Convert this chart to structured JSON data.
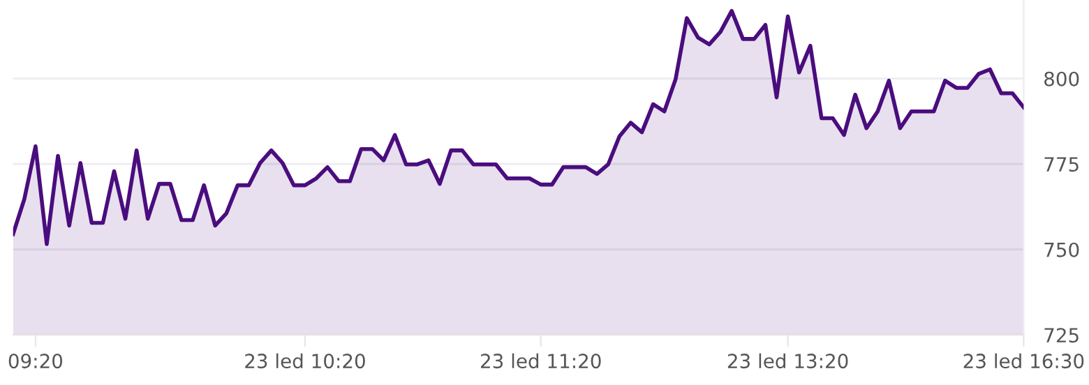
{
  "chart_data": {
    "type": "area",
    "categories": [
      null,
      null,
      "09:20",
      null,
      null,
      null,
      null,
      null,
      null,
      null,
      null,
      null,
      null,
      null,
      null,
      null,
      null,
      null,
      null,
      null,
      null,
      null,
      null,
      null,
      null,
      null,
      "23 led 10:20",
      null,
      null,
      null,
      null,
      null,
      null,
      null,
      null,
      null,
      null,
      null,
      null,
      null,
      null,
      null,
      null,
      null,
      null,
      null,
      null,
      "23 led 11:20",
      null,
      null,
      null,
      null,
      null,
      null,
      null,
      null,
      null,
      null,
      null,
      null,
      null,
      null,
      null,
      null,
      null,
      null,
      null,
      null,
      null,
      "23 led 13:20",
      null,
      null,
      null,
      null,
      null,
      null,
      null,
      null,
      null,
      null,
      null,
      null,
      null,
      null,
      null,
      null,
      null,
      null,
      null,
      null,
      "23 led 16:30"
    ],
    "series": [
      {
        "color": "#4a0d7e",
        "values": [
          754.5,
          764.7,
          780.2,
          751.6,
          777.4,
          757,
          775.3,
          757.8,
          757.8,
          772.9,
          759,
          779,
          759,
          769.2,
          769.2,
          758.6,
          758.6,
          768.8,
          757,
          760.6,
          768.8,
          768.8,
          775.3,
          779,
          775.3,
          768.8,
          768.8,
          770.8,
          774.1,
          770,
          770,
          779.4,
          779.4,
          776.1,
          783.5,
          774.9,
          774.9,
          776.1,
          769.2,
          779,
          779,
          774.9,
          774.9,
          774.9,
          770.8,
          770.8,
          770.8,
          769,
          769,
          774.1,
          774.1,
          774.1,
          772.1,
          774.9,
          783.1,
          787.1,
          784.3,
          792.5,
          790.4,
          799.8,
          817.7,
          812,
          810,
          813.7,
          819.8,
          811.6,
          811.6,
          815.7,
          794.5,
          818.2,
          801.8,
          809.6,
          788.4,
          788.4,
          783.5,
          795.3,
          785.5,
          790.4,
          799.4,
          785.5,
          790.4,
          790.4,
          790.4,
          799.4,
          797.3,
          797.3,
          801.4,
          802.7,
          795.7,
          795.7,
          791.6
        ]
      }
    ],
    "ylim": [
      725,
      823
    ],
    "yticks": [
      725,
      750,
      775,
      800
    ],
    "grid": "y",
    "line_style": "solid",
    "marker": "none"
  }
}
